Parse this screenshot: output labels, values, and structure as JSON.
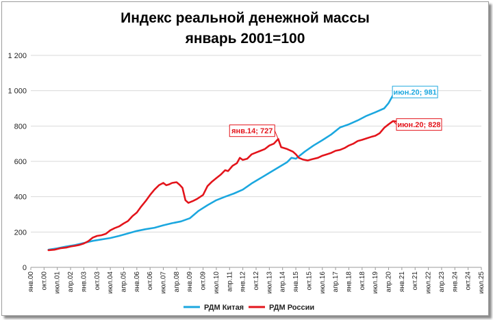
{
  "chart_data": {
    "type": "line",
    "title": "Индекс реальной денежной массы",
    "subtitle": "январь 2001=100",
    "ylim": [
      0,
      1200
    ],
    "yticks": [
      0,
      200,
      400,
      600,
      800,
      1000,
      1200
    ],
    "ytick_labels": [
      "0",
      "200",
      "400",
      "600",
      "800",
      "1 000",
      "1 200"
    ],
    "xlim": [
      0,
      306
    ],
    "xticks": [
      {
        "t": 0,
        "label": "янв.00"
      },
      {
        "t": 9,
        "label": "окт.00"
      },
      {
        "t": 18,
        "label": "июл.01"
      },
      {
        "t": 27,
        "label": "апр.02"
      },
      {
        "t": 36,
        "label": "янв.03"
      },
      {
        "t": 45,
        "label": "окт.03"
      },
      {
        "t": 54,
        "label": "июл.04"
      },
      {
        "t": 63,
        "label": "апр.05"
      },
      {
        "t": 72,
        "label": "янв.06"
      },
      {
        "t": 81,
        "label": "окт.06"
      },
      {
        "t": 90,
        "label": "июл.07"
      },
      {
        "t": 99,
        "label": "апр.08"
      },
      {
        "t": 108,
        "label": "янв.09"
      },
      {
        "t": 117,
        "label": "окт.09"
      },
      {
        "t": 126,
        "label": "июл.10"
      },
      {
        "t": 135,
        "label": "апр.11"
      },
      {
        "t": 144,
        "label": "янв.12"
      },
      {
        "t": 153,
        "label": "окт.12"
      },
      {
        "t": 162,
        "label": "июл.13"
      },
      {
        "t": 171,
        "label": "апр.14"
      },
      {
        "t": 180,
        "label": "янв.15"
      },
      {
        "t": 189,
        "label": "окт.15"
      },
      {
        "t": 198,
        "label": "июл.16"
      },
      {
        "t": 207,
        "label": "апр.17"
      },
      {
        "t": 216,
        "label": "янв.18"
      },
      {
        "t": 225,
        "label": "окт.18"
      },
      {
        "t": 234,
        "label": "июл.19"
      },
      {
        "t": 243,
        "label": "апр.20"
      },
      {
        "t": 252,
        "label": "янв.21"
      },
      {
        "t": 261,
        "label": "окт.21"
      },
      {
        "t": 270,
        "label": "июл.22"
      },
      {
        "t": 279,
        "label": "апр.23"
      },
      {
        "t": 288,
        "label": "янв.24"
      },
      {
        "t": 297,
        "label": "окт.24"
      },
      {
        "t": 306,
        "label": "июл.25"
      }
    ],
    "grid": "horizontal",
    "legend": "bottom",
    "series": [
      {
        "name": "РДМ Китая",
        "color": "#1ba7df",
        "points": [
          [
            12,
            100
          ],
          [
            18,
            108
          ],
          [
            24,
            118
          ],
          [
            30,
            126
          ],
          [
            36,
            138
          ],
          [
            42,
            150
          ],
          [
            48,
            158
          ],
          [
            54,
            166
          ],
          [
            60,
            178
          ],
          [
            66,
            192
          ],
          [
            72,
            206
          ],
          [
            78,
            216
          ],
          [
            84,
            224
          ],
          [
            90,
            238
          ],
          [
            96,
            250
          ],
          [
            102,
            260
          ],
          [
            108,
            278
          ],
          [
            114,
            320
          ],
          [
            120,
            352
          ],
          [
            126,
            380
          ],
          [
            132,
            400
          ],
          [
            138,
            418
          ],
          [
            144,
            440
          ],
          [
            150,
            475
          ],
          [
            156,
            505
          ],
          [
            162,
            535
          ],
          [
            168,
            565
          ],
          [
            174,
            595
          ],
          [
            177,
            620
          ],
          [
            180,
            615
          ],
          [
            186,
            655
          ],
          [
            192,
            690
          ],
          [
            198,
            720
          ],
          [
            204,
            752
          ],
          [
            210,
            792
          ],
          [
            216,
            810
          ],
          [
            222,
            832
          ],
          [
            228,
            858
          ],
          [
            234,
            878
          ],
          [
            240,
            900
          ],
          [
            243,
            930
          ],
          [
            246,
            975
          ],
          [
            247,
            981
          ]
        ]
      },
      {
        "name": "РДМ России",
        "color": "#e3141b",
        "points": [
          [
            12,
            97
          ],
          [
            16,
            100
          ],
          [
            20,
            108
          ],
          [
            24,
            112
          ],
          [
            27,
            118
          ],
          [
            30,
            122
          ],
          [
            33,
            127
          ],
          [
            36,
            135
          ],
          [
            39,
            148
          ],
          [
            42,
            168
          ],
          [
            45,
            178
          ],
          [
            48,
            182
          ],
          [
            51,
            190
          ],
          [
            54,
            210
          ],
          [
            57,
            222
          ],
          [
            60,
            232
          ],
          [
            63,
            248
          ],
          [
            66,
            262
          ],
          [
            69,
            290
          ],
          [
            72,
            310
          ],
          [
            75,
            345
          ],
          [
            78,
            375
          ],
          [
            81,
            410
          ],
          [
            84,
            440
          ],
          [
            87,
            465
          ],
          [
            90,
            478
          ],
          [
            92,
            465
          ],
          [
            94,
            470
          ],
          [
            96,
            478
          ],
          [
            99,
            482
          ],
          [
            101,
            468
          ],
          [
            103,
            450
          ],
          [
            105,
            380
          ],
          [
            107,
            365
          ],
          [
            110,
            375
          ],
          [
            113,
            388
          ],
          [
            117,
            410
          ],
          [
            120,
            460
          ],
          [
            123,
            485
          ],
          [
            126,
            505
          ],
          [
            129,
            525
          ],
          [
            132,
            550
          ],
          [
            134,
            545
          ],
          [
            137,
            575
          ],
          [
            140,
            590
          ],
          [
            142,
            620
          ],
          [
            144,
            608
          ],
          [
            147,
            615
          ],
          [
            150,
            640
          ],
          [
            153,
            650
          ],
          [
            156,
            660
          ],
          [
            159,
            670
          ],
          [
            162,
            690
          ],
          [
            165,
            700
          ],
          [
            168,
            727
          ],
          [
            170,
            680
          ],
          [
            174,
            670
          ],
          [
            178,
            655
          ],
          [
            180,
            640
          ],
          [
            182,
            620
          ],
          [
            185,
            610
          ],
          [
            188,
            605
          ],
          [
            191,
            612
          ],
          [
            195,
            620
          ],
          [
            198,
            632
          ],
          [
            201,
            640
          ],
          [
            204,
            648
          ],
          [
            207,
            660
          ],
          [
            210,
            665
          ],
          [
            213,
            675
          ],
          [
            216,
            690
          ],
          [
            219,
            700
          ],
          [
            222,
            715
          ],
          [
            225,
            722
          ],
          [
            228,
            730
          ],
          [
            231,
            738
          ],
          [
            234,
            745
          ],
          [
            237,
            760
          ],
          [
            240,
            790
          ],
          [
            243,
            810
          ],
          [
            246,
            828
          ],
          [
            249,
            825
          ]
        ]
      }
    ],
    "annotations": [
      {
        "text": "июн.20; 981",
        "t": 247,
        "y": 981,
        "color": "#1ba7df"
      },
      {
        "text": "июн.20; 828",
        "t": 246,
        "y": 828,
        "color": "#e3141b"
      },
      {
        "text": "янв.14; 727",
        "t": 168,
        "y": 727,
        "color": "#e3141b"
      }
    ]
  }
}
